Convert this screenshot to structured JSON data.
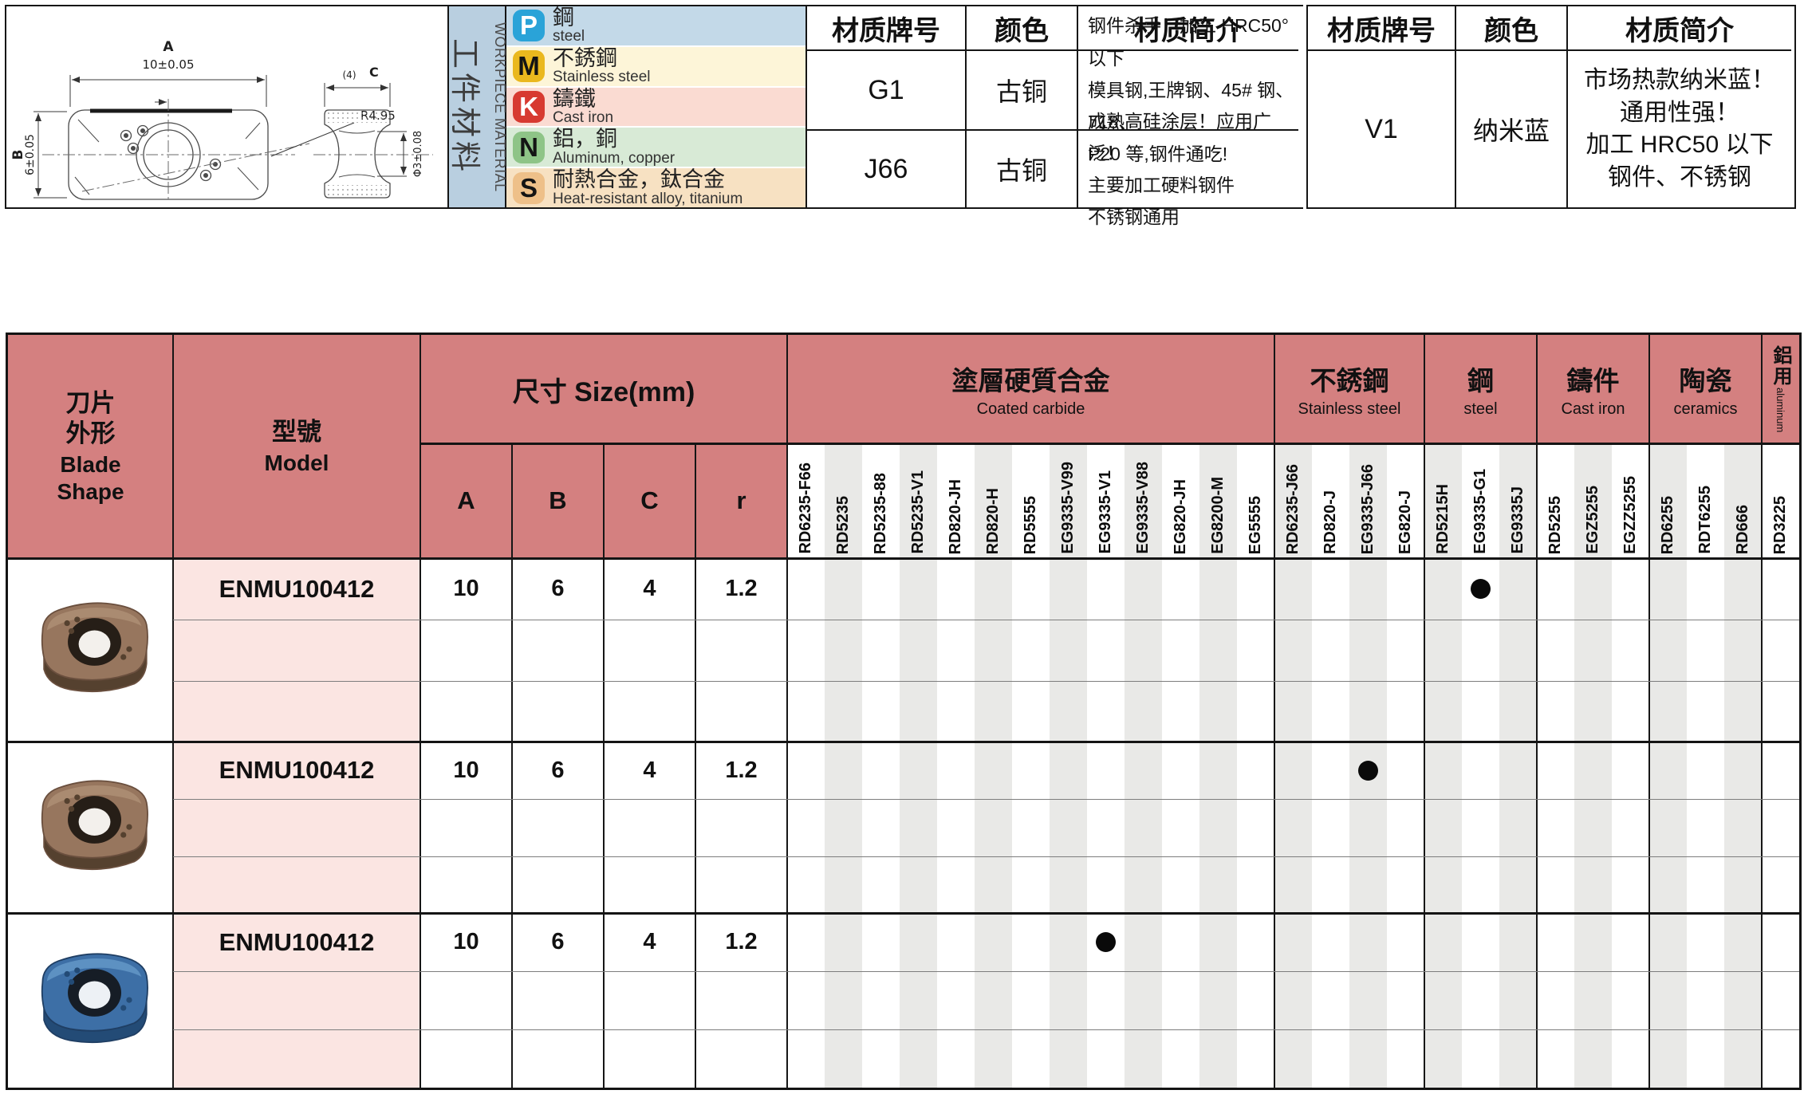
{
  "top": {
    "drawing": {
      "dim_a_label": "A",
      "dim_a_value": "10±0.05",
      "dim_b_label": "B",
      "dim_b_value": "6±0.05",
      "radius_label": "R4.95",
      "side_count_label": "(4)",
      "side_c_label": "C",
      "side_dia_label": "Φ3±0.08"
    },
    "workpiece": {
      "title_cn": "工件材料",
      "title_en": "WORKPIECE MATERIAL",
      "rows": [
        {
          "letter": "P",
          "cn": "鋼",
          "en": "steel",
          "badge": "#2aa3d8",
          "bg": "#c3d9e8",
          "letter_color": "#ffffff"
        },
        {
          "letter": "M",
          "cn": "不銹鋼",
          "en": "Stainless steel",
          "badge": "#eab81e",
          "bg": "#fdf5d8",
          "letter_color": "#141414"
        },
        {
          "letter": "K",
          "cn": "鑄鐵",
          "en": "Cast iron",
          "badge": "#d73a31",
          "bg": "#fadbd2",
          "letter_color": "#ffffff"
        },
        {
          "letter": "N",
          "cn": "鋁，銅",
          "en": "Aluminum, copper",
          "badge": "#8ec487",
          "bg": "#d8ead6",
          "letter_color": "#141414"
        },
        {
          "letter": "S",
          "cn": "耐熱合金，鈦合金",
          "en": "Heat-resistant alloy, titanium",
          "badge": "#eec089",
          "bg": "#f7e1c2",
          "letter_color": "#141414"
        }
      ]
    },
    "grade_tables": [
      {
        "headers": [
          "材质牌号",
          "颜色",
          "材质简介"
        ],
        "rows": [
          {
            "grade": "G1",
            "color": "古铜",
            "desc": "钢件杀手！加工 HRC50°以下\n模具钢,王牌钢、45# 钢、718、\nP20 等,钢件通吃!"
          },
          {
            "grade": "J66",
            "color": "古铜",
            "desc": "成熟高硅涂层！应用广泛！\n主要加工硬料钢件\n不锈钢通用"
          }
        ]
      },
      {
        "headers": [
          "材质牌号",
          "颜色",
          "材质简介"
        ],
        "rows": [
          {
            "grade": "V1",
            "color": "纳米蓝",
            "desc": "市场热款纳米蓝！\n通用性强！\n加工 HRC50 以下\n钢件、不锈钢"
          }
        ]
      }
    ]
  },
  "table": {
    "blade_shape_header_cn": "刀片\n外形",
    "blade_shape_header_en": "Blade\nShape",
    "model_header_cn": "型號",
    "model_header_en": "Model",
    "size_header": "尺寸 Size(mm)",
    "size_columns": [
      "A",
      "B",
      "C",
      "r"
    ],
    "groups": [
      {
        "cn": "塗層硬質合金",
        "en": "Coated carbide",
        "columns": [
          "RD6235-F66",
          "RD5235",
          "RD5235-88",
          "RD5235-V1",
          "RD820-JH",
          "RD820-H",
          "RD5555",
          "EG9335-V99",
          "EG9335-V1",
          "EG9335-V88",
          "EG820-JH",
          "EG8200-M",
          "EG5555"
        ]
      },
      {
        "cn": "不銹鋼",
        "en": "Stainless steel",
        "columns": [
          "RD6235-J66",
          "RD820-J",
          "EG9335-J66",
          "EG820-J"
        ]
      },
      {
        "cn": "鋼",
        "en": "steel",
        "columns": [
          "RD5215H",
          "EG9335-G1",
          "EG9335J"
        ]
      },
      {
        "cn": "鑄件",
        "en": "Cast iron",
        "columns": [
          "RD5255",
          "EGZ5255",
          "EGZZ5255"
        ]
      },
      {
        "cn": "陶瓷",
        "en": "ceramics",
        "columns": [
          "RD6255",
          "RDT6255",
          "RD666"
        ]
      },
      {
        "cn": "鋁用",
        "en": "aluminum",
        "columns": [
          "RD3225"
        ],
        "vertical": true
      }
    ],
    "blocks": [
      {
        "model": "ENMU100412",
        "a": "10",
        "b": "6",
        "c": "4",
        "r": "1.2",
        "insert_color": "bronze",
        "dot_column": "EG9335-G1"
      },
      {
        "model": "ENMU100412",
        "a": "10",
        "b": "6",
        "c": "4",
        "r": "1.2",
        "insert_color": "bronze",
        "dot_column": "EG9335-J66"
      },
      {
        "model": "ENMU100412",
        "a": "10",
        "b": "6",
        "c": "4",
        "r": "1.2",
        "insert_color": "blue",
        "dot_column": "EG9335-V1"
      }
    ],
    "colors": {
      "header_bg": "#d48080",
      "model_cell_bg": "#fbe5e2",
      "stripe_gray": "#e9e9e7",
      "sidebar_bg": "#b9cfe0",
      "dot": "#0a0a0a",
      "insert_bronze": "#97765e",
      "insert_blue": "#3d6fa6"
    }
  }
}
